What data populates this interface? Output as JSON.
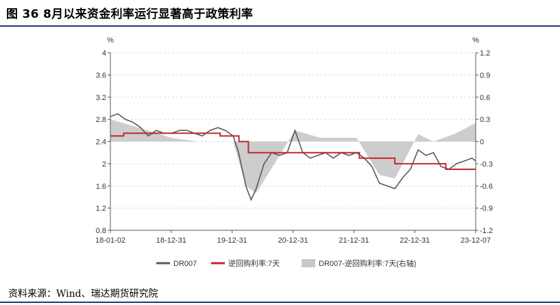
{
  "figure_title": "图 36 8月以来资金利率运行显著高于政策利率",
  "source": "资料来源：Wind、瑞达期货研究院",
  "colors": {
    "dr007": "#595959",
    "repo": "#c0272d",
    "spread": "#c8c8c8",
    "rule": "#1f3a78"
  },
  "chart_data": {
    "type": "line",
    "title": "",
    "y_left": {
      "unit": "%",
      "lim": [
        0.8,
        4.0
      ],
      "ticks": [
        0.8,
        1.2,
        1.6,
        2.0,
        2.4,
        2.8,
        3.2,
        3.6,
        4.0
      ],
      "tick_labels": [
        "0.8",
        "1.2",
        "1.6",
        "2",
        "2.4",
        "2.8",
        "3.2",
        "3.6",
        "4"
      ]
    },
    "y_right": {
      "unit": "%",
      "lim": [
        -1.2,
        1.2
      ],
      "ticks": [
        -1.2,
        -0.9,
        -0.6,
        -0.3,
        0,
        0.3,
        0.6,
        0.9,
        1.2
      ],
      "tick_labels": [
        "-1.2",
        "-0.9",
        "-0.6",
        "-0.3",
        "0",
        "0.3",
        "0.6",
        "0.9",
        "1.2"
      ]
    },
    "x_ticks": [
      "18-01-02",
      "18-12-31",
      "19-12-31",
      "20-12-31",
      "21-12-31",
      "22-12-31",
      "23-12-07"
    ],
    "x_range": [
      "2018-01-02",
      "2023-12-07"
    ],
    "grid": true,
    "legend_position": "bottom",
    "series": [
      {
        "name": "DR007",
        "axis": "left",
        "type": "line",
        "x": [
          "2018-01-02",
          "2018-02-15",
          "2018-04-01",
          "2018-05-15",
          "2018-07-01",
          "2018-08-15",
          "2018-10-01",
          "2018-11-15",
          "2018-12-31",
          "2019-02-15",
          "2019-04-01",
          "2019-05-15",
          "2019-07-01",
          "2019-08-15",
          "2019-10-01",
          "2019-11-15",
          "2019-12-31",
          "2020-02-01",
          "2020-03-15",
          "2020-04-15",
          "2020-05-15",
          "2020-07-01",
          "2020-08-15",
          "2020-10-01",
          "2020-11-15",
          "2020-12-31",
          "2021-02-15",
          "2021-04-01",
          "2021-05-15",
          "2021-07-01",
          "2021-08-15",
          "2021-10-01",
          "2021-11-15",
          "2021-12-31",
          "2022-02-15",
          "2022-04-01",
          "2022-05-15",
          "2022-07-01",
          "2022-08-15",
          "2022-10-01",
          "2022-11-15",
          "2022-12-31",
          "2023-02-15",
          "2023-04-01",
          "2023-05-15",
          "2023-07-01",
          "2023-08-15",
          "2023-10-01",
          "2023-11-15",
          "2023-12-07"
        ],
        "values": [
          2.85,
          2.9,
          2.8,
          2.75,
          2.65,
          2.5,
          2.6,
          2.55,
          2.55,
          2.6,
          2.6,
          2.55,
          2.5,
          2.6,
          2.65,
          2.6,
          2.5,
          2.2,
          1.6,
          1.35,
          1.55,
          2.0,
          2.2,
          2.15,
          2.2,
          2.6,
          2.2,
          2.1,
          2.15,
          2.2,
          2.1,
          2.2,
          2.15,
          2.2,
          2.1,
          1.95,
          1.65,
          1.6,
          1.55,
          1.75,
          1.9,
          2.25,
          2.15,
          2.2,
          1.95,
          1.9,
          2.0,
          2.05,
          2.1,
          2.05
        ]
      },
      {
        "name": "逆回购利率:7天",
        "axis": "left",
        "type": "step",
        "x": [
          "2018-01-02",
          "2018-03-22",
          "2019-10-15",
          "2020-02-03",
          "2020-03-30",
          "2022-01-17",
          "2022-08-15",
          "2023-06-13",
          "2023-12-07"
        ],
        "values": [
          2.5,
          2.55,
          2.5,
          2.4,
          2.2,
          2.1,
          2.0,
          1.9,
          1.9
        ]
      },
      {
        "name": "DR007-逆回购利率:7天(右轴)",
        "axis": "right",
        "type": "area",
        "x": [
          "2018-01-02",
          "2018-06-01",
          "2018-12-31",
          "2019-06-01",
          "2019-12-31",
          "2020-03-15",
          "2020-05-15",
          "2020-12-31",
          "2021-06-01",
          "2021-12-31",
          "2022-05-15",
          "2022-08-15",
          "2022-12-31",
          "2023-04-01",
          "2023-08-01",
          "2023-12-07"
        ],
        "values": [
          0.3,
          0.2,
          0.05,
          0.0,
          0.0,
          -0.6,
          -0.7,
          0.15,
          0.05,
          0.05,
          -0.45,
          -0.5,
          0.1,
          0.0,
          0.1,
          0.25
        ]
      }
    ]
  },
  "legend": [
    {
      "key": "dr007",
      "label": "DR007"
    },
    {
      "key": "repo",
      "label": "逆回购利率:7天"
    },
    {
      "key": "spread",
      "label": "DR007-逆回购利率:7天(右轴)"
    }
  ]
}
